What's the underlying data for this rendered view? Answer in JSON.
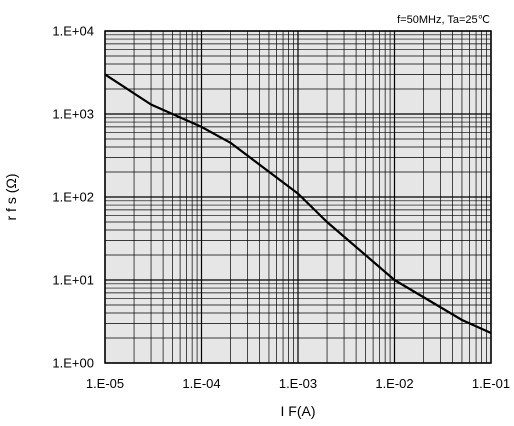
{
  "chart_data": {
    "type": "line",
    "title": "",
    "annotation": "f=50MHz,  Ta=25℃",
    "xlabel": "I F(A)",
    "ylabel": "r  f  s (Ω)",
    "x_scale": "log",
    "y_scale": "log",
    "xlim": [
      1e-05,
      0.1
    ],
    "ylim": [
      1,
      10000
    ],
    "x_ticks": [
      1e-05,
      0.0001,
      0.001,
      0.01,
      0.1
    ],
    "x_tick_labels": [
      "1.E-05",
      "1.E-04",
      "1.E-03",
      "1.E-02",
      "1.E-01"
    ],
    "y_ticks": [
      1,
      10,
      100,
      1000,
      10000
    ],
    "y_tick_labels": [
      "1.E+00",
      "1.E+01",
      "1.E+02",
      "1.E+03",
      "1.E+04"
    ],
    "grid": true,
    "plot_background": "#e6e6e6",
    "line_color": "#000000",
    "series": [
      {
        "x": [
          1e-05,
          3e-05,
          0.0001,
          0.0002,
          0.001,
          0.002,
          0.01,
          0.05,
          0.1
        ],
        "y": [
          3000,
          1300,
          700,
          450,
          110,
          50,
          10,
          3.3,
          2.3
        ]
      }
    ]
  }
}
